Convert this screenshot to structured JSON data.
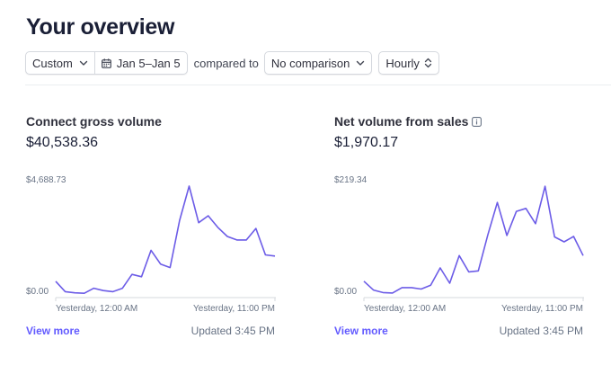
{
  "page": {
    "title": "Your overview"
  },
  "filters": {
    "range_preset": "Custom",
    "date_range": "Jan 5–Jan 5",
    "compared_to_label": "compared to",
    "comparison": "No comparison",
    "interval": "Hourly"
  },
  "colors": {
    "accent": "#635bff",
    "line": "#6c5ce7",
    "axis": "#d5d8de"
  },
  "cards": [
    {
      "title": "Connect gross volume",
      "value": "$40,538.36",
      "info_icon": false,
      "view_more": "View more",
      "updated": "Updated 3:45 PM"
    },
    {
      "title": "Net volume from sales",
      "value": "$1,970.17",
      "info_icon": true,
      "view_more": "View more",
      "updated": "Updated 3:45 PM"
    }
  ],
  "chart_data": [
    {
      "type": "line",
      "ymax_label": "$4,688.73",
      "ymin_label": "$0.00",
      "x_labels": [
        "Yesterday, 12:00 AM",
        "Yesterday, 11:00 PM"
      ],
      "ylim": [
        0,
        4688.73
      ],
      "series": [
        {
          "values": [
            550,
            100,
            50,
            30,
            250,
            150,
            100,
            250,
            850,
            750,
            1900,
            1300,
            1150,
            3200,
            4688,
            3100,
            3400,
            2900,
            2500,
            2350,
            2350,
            2850,
            1700,
            1650
          ]
        }
      ]
    },
    {
      "type": "line",
      "ymax_label": "$219.34",
      "ymin_label": "$0.00",
      "x_labels": [
        "Yesterday, 12:00 AM",
        "Yesterday, 11:00 PM"
      ],
      "ylim": [
        0,
        219.34
      ],
      "series": [
        {
          "values": [
            26,
            8,
            3,
            2,
            13,
            13,
            10,
            18,
            53,
            22,
            78,
            45,
            47,
            120,
            186,
            119,
            168,
            174,
            143,
            219,
            116,
            106,
            117,
            78
          ]
        }
      ]
    }
  ]
}
